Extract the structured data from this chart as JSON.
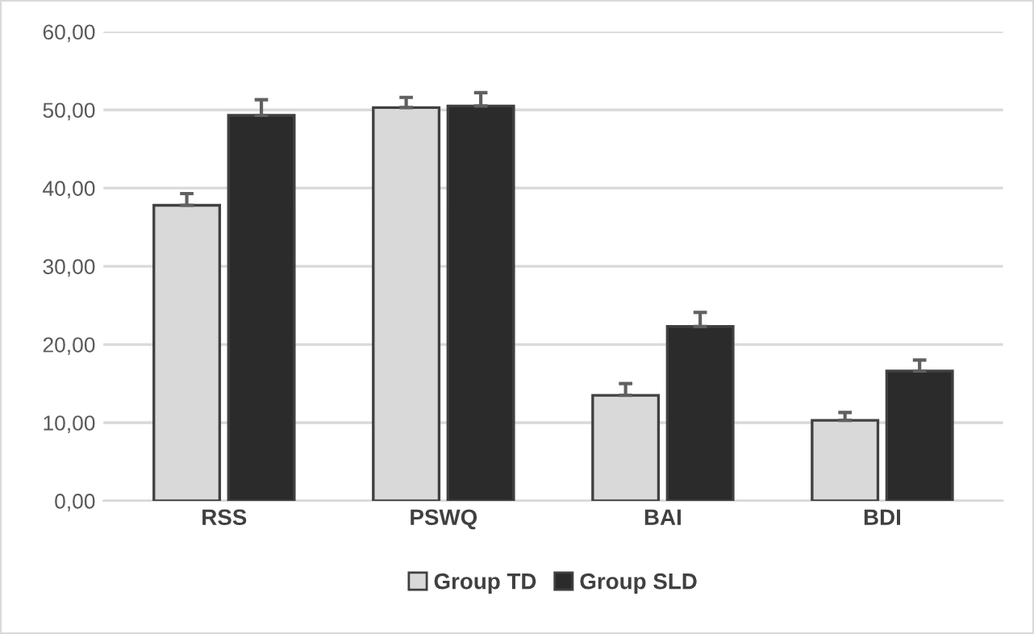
{
  "chart_data": {
    "type": "bar",
    "categories": [
      "RSS",
      "PSWQ",
      "BAI",
      "BDI"
    ],
    "series": [
      {
        "name": "Group TD",
        "color": "#d9d9d9",
        "values": [
          37.8,
          50.3,
          13.5,
          10.3
        ],
        "errors": [
          [
            37.8,
            39.3
          ],
          [
            50.3,
            51.6
          ],
          [
            13.5,
            15.0
          ],
          [
            10.3,
            11.3
          ]
        ]
      },
      {
        "name": "Group SLD",
        "color": "#2b2b2b",
        "values": [
          49.3,
          50.5,
          22.3,
          16.6
        ],
        "errors": [
          [
            49.3,
            51.3
          ],
          [
            50.5,
            52.2
          ],
          [
            22.3,
            24.1
          ],
          [
            16.6,
            18.0
          ]
        ]
      }
    ],
    "ylim": [
      0,
      60
    ],
    "yticks": [
      {
        "value": 0,
        "label": "0,00"
      },
      {
        "value": 10,
        "label": "10,00"
      },
      {
        "value": 20,
        "label": "20,00"
      },
      {
        "value": 30,
        "label": "30,00"
      },
      {
        "value": 40,
        "label": "40,00"
      },
      {
        "value": 50,
        "label": "50,00"
      },
      {
        "value": 60,
        "label": "60,00"
      }
    ],
    "grid": "y",
    "legend": "bottom"
  }
}
